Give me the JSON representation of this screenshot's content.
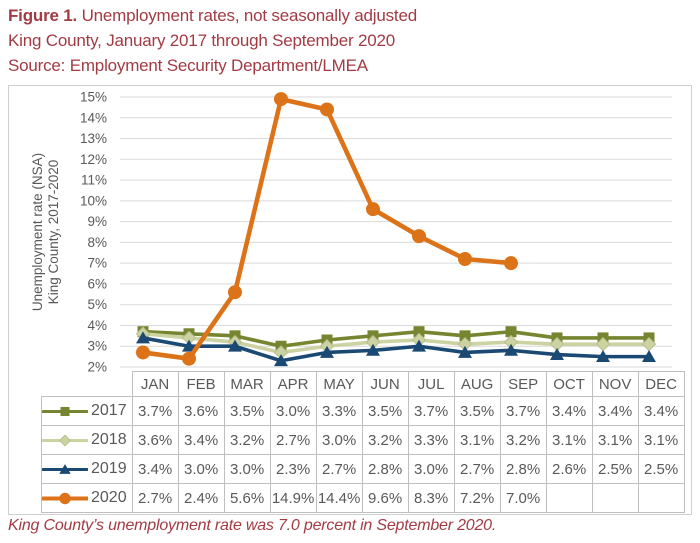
{
  "header": {
    "figure_label": "Figure 1.",
    "title": " Unemployment rates, not seasonally adjusted",
    "subtitle": "King County, January 2017 through September 2020",
    "source": "Source: Employment Security Department/LMEA"
  },
  "caption": "King County’s unemployment rate was 7.0 percent in September 2020.",
  "style": {
    "accent_red": "#A23B44",
    "grid_color": "#D9D9D9",
    "table_border_color": "#BFBFBF",
    "text_gray": "#595959",
    "frame_border_color": "#CFCFCF"
  },
  "chart_data": {
    "type": "line",
    "title": "",
    "xlabel": "",
    "y_axis_title": [
      "Unemployment rate (NSA)",
      "King County, 2017-2020"
    ],
    "ylim": [
      2,
      15
    ],
    "ytick_interval": 1,
    "ytick_suffix": "%",
    "grid": true,
    "legend_position": "data-table-left",
    "categories": [
      "JAN",
      "FEB",
      "MAR",
      "APR",
      "MAY",
      "JUN",
      "JUL",
      "AUG",
      "SEP",
      "OCT",
      "NOV",
      "DEC"
    ],
    "series": [
      {
        "name": "2017",
        "color": "#76852F",
        "marker": "square",
        "line_width": 3.6,
        "values": [
          3.7,
          3.6,
          3.5,
          3.0,
          3.3,
          3.5,
          3.7,
          3.5,
          3.7,
          3.4,
          3.4,
          3.4
        ]
      },
      {
        "name": "2018",
        "color": "#CDD2A2",
        "marker": "diamond",
        "line_width": 3.6,
        "values": [
          3.6,
          3.4,
          3.2,
          2.7,
          3.0,
          3.2,
          3.3,
          3.1,
          3.2,
          3.1,
          3.1,
          3.1
        ]
      },
      {
        "name": "2019",
        "color": "#1A4973",
        "marker": "triangle",
        "line_width": 3.6,
        "values": [
          3.4,
          3.0,
          3.0,
          2.3,
          2.7,
          2.8,
          3.0,
          2.7,
          2.8,
          2.6,
          2.5,
          2.5
        ]
      },
      {
        "name": "2020",
        "color": "#DC7318",
        "marker": "circle",
        "line_width": 4.6,
        "values": [
          2.7,
          2.4,
          5.6,
          14.9,
          14.4,
          9.6,
          8.3,
          7.2,
          7.0,
          null,
          null,
          null
        ]
      }
    ]
  }
}
